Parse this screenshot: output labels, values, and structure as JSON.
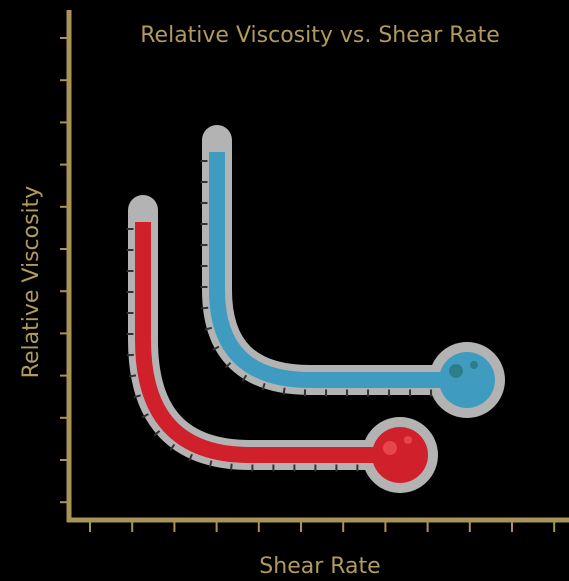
{
  "title": "Relative Viscosity vs. Shear Rate",
  "x_label": "Shear Rate",
  "y_label": "Relative Viscosity"
}
